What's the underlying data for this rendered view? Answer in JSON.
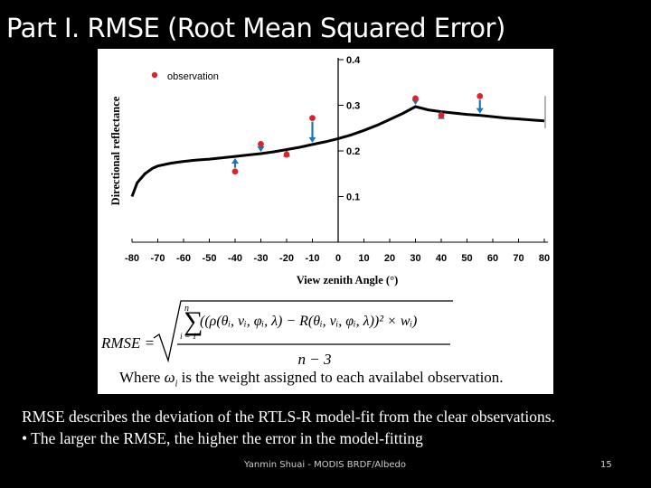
{
  "slide": {
    "title": "Part I. RMSE (Root Mean Squared Error)",
    "weight_note_prefix": "Where",
    "weight_note_symbol": "ω",
    "weight_note_subscript": "i",
    "weight_note_suffix": "is the weight assigned to each availabel observation.",
    "description_line1": "RMSE describes the deviation of the RTLS-R model-fit from the clear observations.",
    "description_line2": "• The larger the RMSE, the higher the error in the model-fitting",
    "footer": "Yanmin Shuai - MODIS BRDF/Albedo",
    "page_number": "15"
  },
  "formula": {
    "lhs": "RMSE =",
    "sum_upper": "n",
    "sum_lower": "i = 1",
    "numerator": "((ρ(θᵢ, νᵢ, φᵢ, λ) − R(θᵢ, νᵢ, φᵢ, λ))² × wᵢ)",
    "denominator": "n − 3"
  },
  "chart_data": {
    "type": "line",
    "xlabel": "View zenith Angle (°)",
    "ylabel": "Directional reflectance",
    "xlim": [
      -80,
      80
    ],
    "ylim": [
      0,
      0.4
    ],
    "xticks": [
      "-80",
      "-70",
      "-60",
      "-50",
      "-40",
      "-30",
      "-20",
      "-10",
      "0",
      "10",
      "20",
      "30",
      "40",
      "50",
      "60",
      "70",
      "80"
    ],
    "yticks": [
      "0.1",
      "0.2",
      "0.3",
      "0.4"
    ],
    "grid": false,
    "legend": {
      "position": "top-left",
      "entries": [
        "observation"
      ]
    },
    "colors": {
      "observation": "#d9232d",
      "model": "#000000",
      "residual": "#1f73b7"
    },
    "model_curve": {
      "x": [
        -80,
        -78,
        -75,
        -72,
        -70,
        -65,
        -60,
        -55,
        -50,
        -45,
        -40,
        -35,
        -30,
        -25,
        -20,
        -15,
        -10,
        -5,
        0,
        5,
        10,
        15,
        20,
        25,
        30,
        35,
        40,
        45,
        50,
        55,
        60,
        65,
        70,
        75,
        80
      ],
      "y": [
        0.1,
        0.13,
        0.15,
        0.162,
        0.167,
        0.173,
        0.177,
        0.18,
        0.182,
        0.185,
        0.188,
        0.191,
        0.194,
        0.198,
        0.203,
        0.208,
        0.214,
        0.22,
        0.227,
        0.235,
        0.245,
        0.256,
        0.269,
        0.282,
        0.297,
        0.29,
        0.286,
        0.283,
        0.28,
        0.278,
        0.275,
        0.272,
        0.27,
        0.268,
        0.266
      ]
    },
    "observations": {
      "x": [
        -40,
        -30,
        -20,
        -10,
        30,
        40,
        55
      ],
      "y": [
        0.155,
        0.215,
        0.192,
        0.272,
        0.315,
        0.278,
        0.32
      ]
    }
  }
}
